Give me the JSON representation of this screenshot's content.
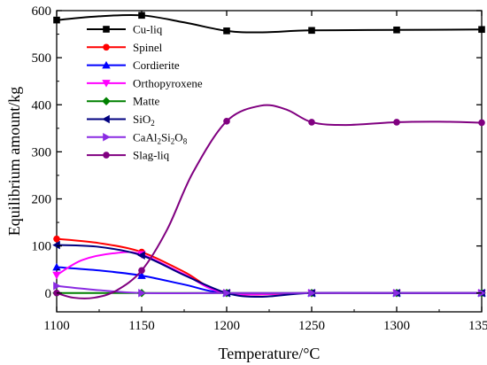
{
  "chart_data": {
    "type": "line",
    "xlabel": "Temperature/°C",
    "ylabel": "Equilibrium amount/kg",
    "xlim": [
      1100,
      1350
    ],
    "ylim": [
      -40,
      600
    ],
    "x_ticks": [
      "1100",
      "1150",
      "1200",
      "1250",
      "1300",
      "1350"
    ],
    "y_ticks": [
      "0",
      "100",
      "200",
      "300",
      "400",
      "500",
      "600"
    ],
    "legend_position": "top-left inside",
    "grid": false,
    "series": [
      {
        "name": "Cu-liq",
        "color": "#000000",
        "marker": "square",
        "points": [
          [
            1100,
            580
          ],
          [
            1150,
            590
          ],
          [
            1200,
            557
          ],
          [
            1250,
            558
          ],
          [
            1300,
            559
          ],
          [
            1350,
            560
          ]
        ],
        "curve": [
          [
            1100,
            580
          ],
          [
            1125,
            588
          ],
          [
            1150,
            590
          ],
          [
            1175,
            575
          ],
          [
            1200,
            557
          ],
          [
            1220,
            554
          ],
          [
            1250,
            558
          ],
          [
            1300,
            559
          ],
          [
            1350,
            560
          ]
        ]
      },
      {
        "name": "Spinel",
        "color": "#ff0000",
        "marker": "circle",
        "points": [
          [
            1100,
            115
          ],
          [
            1150,
            87
          ],
          [
            1200,
            0
          ],
          [
            1250,
            0
          ],
          [
            1300,
            0
          ],
          [
            1350,
            0
          ]
        ],
        "curve": [
          [
            1100,
            115
          ],
          [
            1125,
            106
          ],
          [
            1150,
            87
          ],
          [
            1175,
            45
          ],
          [
            1200,
            0
          ],
          [
            1250,
            0
          ],
          [
            1300,
            0
          ],
          [
            1350,
            0
          ]
        ]
      },
      {
        "name": "Cordierite",
        "color": "#0000ff",
        "marker": "triangle-up",
        "points": [
          [
            1100,
            55
          ],
          [
            1150,
            37
          ],
          [
            1200,
            0
          ],
          [
            1250,
            0
          ],
          [
            1300,
            0
          ],
          [
            1350,
            0
          ]
        ],
        "curve": [
          [
            1100,
            55
          ],
          [
            1125,
            48
          ],
          [
            1150,
            37
          ],
          [
            1175,
            18
          ],
          [
            1200,
            0
          ],
          [
            1250,
            0
          ],
          [
            1300,
            0
          ],
          [
            1350,
            0
          ]
        ]
      },
      {
        "name": "Orthopyroxene",
        "color": "#ff00ff",
        "marker": "triangle-down",
        "points": [
          [
            1100,
            38
          ],
          [
            1150,
            82
          ],
          [
            1200,
            0
          ],
          [
            1250,
            0
          ],
          [
            1300,
            0
          ],
          [
            1350,
            0
          ]
        ],
        "curve": [
          [
            1100,
            38
          ],
          [
            1115,
            70
          ],
          [
            1135,
            85
          ],
          [
            1150,
            82
          ],
          [
            1175,
            40
          ],
          [
            1200,
            0
          ],
          [
            1250,
            0
          ],
          [
            1300,
            0
          ],
          [
            1350,
            0
          ]
        ]
      },
      {
        "name": "Matte",
        "color": "#008000",
        "marker": "diamond",
        "points": [
          [
            1100,
            0
          ],
          [
            1150,
            0
          ],
          [
            1200,
            0
          ],
          [
            1250,
            0
          ],
          [
            1300,
            0
          ],
          [
            1350,
            0
          ]
        ],
        "curve": [
          [
            1100,
            0
          ],
          [
            1150,
            0
          ],
          [
            1200,
            0
          ],
          [
            1250,
            0
          ],
          [
            1300,
            0
          ],
          [
            1350,
            0
          ]
        ]
      },
      {
        "name": "SiO2",
        "color": "#000080",
        "marker": "triangle-left",
        "points": [
          [
            1100,
            102
          ],
          [
            1150,
            80
          ],
          [
            1200,
            0
          ],
          [
            1250,
            0
          ],
          [
            1300,
            0
          ],
          [
            1350,
            0
          ]
        ],
        "curve": [
          [
            1100,
            102
          ],
          [
            1125,
            98
          ],
          [
            1150,
            80
          ],
          [
            1175,
            38
          ],
          [
            1200,
            0
          ],
          [
            1220,
            -8
          ],
          [
            1250,
            0
          ],
          [
            1300,
            0
          ],
          [
            1350,
            0
          ]
        ]
      },
      {
        "name": "CaAl2Si2O8",
        "color": "#8a2be2",
        "marker": "triangle-right",
        "points": [
          [
            1100,
            15
          ],
          [
            1150,
            0
          ],
          [
            1200,
            0
          ],
          [
            1250,
            0
          ],
          [
            1300,
            0
          ],
          [
            1350,
            0
          ]
        ],
        "curve": [
          [
            1100,
            15
          ],
          [
            1125,
            6
          ],
          [
            1150,
            0
          ],
          [
            1200,
            0
          ],
          [
            1250,
            0
          ],
          [
            1300,
            0
          ],
          [
            1350,
            0
          ]
        ]
      },
      {
        "name": "Slag-liq",
        "color": "#800080",
        "marker": "circle",
        "points": [
          [
            1100,
            0
          ],
          [
            1150,
            48
          ],
          [
            1200,
            365
          ],
          [
            1250,
            363
          ],
          [
            1300,
            363
          ],
          [
            1350,
            362
          ]
        ],
        "curve": [
          [
            1100,
            0
          ],
          [
            1110,
            -10
          ],
          [
            1122,
            -10
          ],
          [
            1135,
            5
          ],
          [
            1150,
            48
          ],
          [
            1165,
            135
          ],
          [
            1180,
            255
          ],
          [
            1200,
            365
          ],
          [
            1220,
            398
          ],
          [
            1235,
            390
          ],
          [
            1250,
            363
          ],
          [
            1270,
            357
          ],
          [
            1300,
            363
          ],
          [
            1325,
            364
          ],
          [
            1350,
            362
          ]
        ]
      }
    ],
    "legend": [
      {
        "text": "Cu-liq",
        "sub": []
      },
      {
        "text": "Spinel",
        "sub": []
      },
      {
        "text": "Cordierite",
        "sub": []
      },
      {
        "text": "Orthopyroxene",
        "sub": []
      },
      {
        "text": "Matte",
        "sub": []
      },
      {
        "parts": [
          "SiO",
          "2"
        ],
        "sub": [
          1
        ]
      },
      {
        "parts": [
          "CaAl",
          "2",
          "Si",
          "2",
          "O",
          "8"
        ],
        "sub": [
          1,
          3,
          5
        ]
      },
      {
        "text": "Slag-liq",
        "sub": []
      }
    ]
  }
}
